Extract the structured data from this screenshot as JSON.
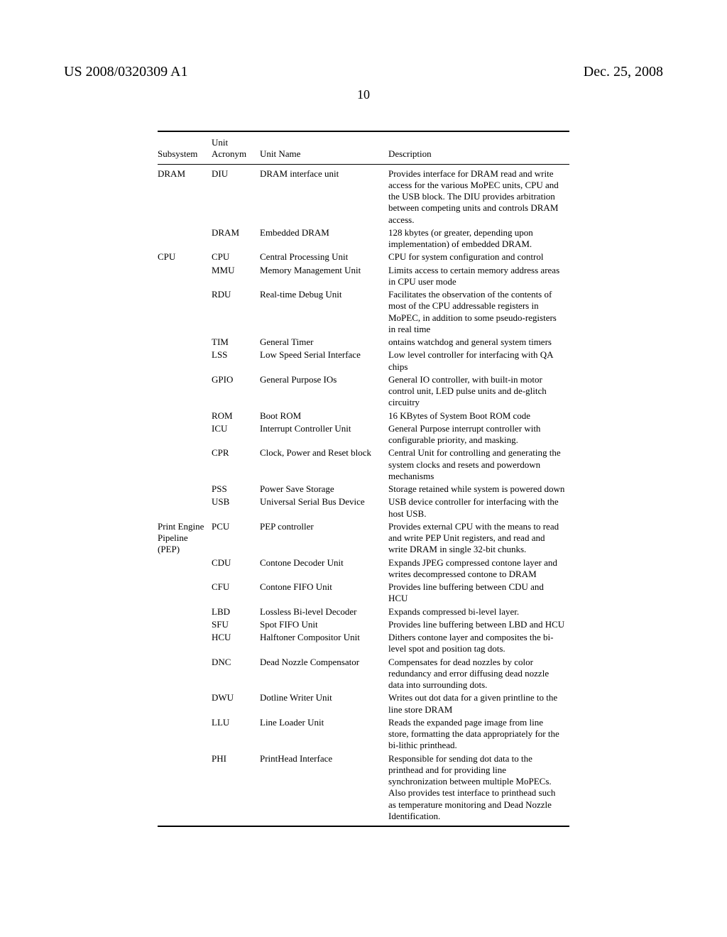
{
  "header": {
    "left": "US 2008/0320309 A1",
    "right": "Dec. 25, 2008"
  },
  "page_number": "10",
  "columns": {
    "subsystem": "Subsystem",
    "acronym_top": "Unit",
    "acronym_bot": "Acronym",
    "name": "Unit Name",
    "desc": "Description"
  },
  "rows": [
    {
      "sub": "DRAM",
      "acr": "DIU",
      "name": "DRAM interface unit",
      "desc": "Provides interface for DRAM read and write access for the various MoPEC units, CPU and the USB block. The DIU provides arbitration between competing units and controls DRAM access."
    },
    {
      "sub": "",
      "acr": "DRAM",
      "name": "Embedded DRAM",
      "desc": "128 kbytes (or greater, depending upon implementation) of embedded DRAM."
    },
    {
      "sub": "CPU",
      "acr": "CPU",
      "name": "Central Processing Unit",
      "desc": "CPU for system configuration and control"
    },
    {
      "sub": "",
      "acr": "MMU",
      "name": "Memory Management Unit",
      "desc": "Limits access to certain memory address areas in CPU user mode"
    },
    {
      "sub": "",
      "acr": "RDU",
      "name": "Real-time Debug Unit",
      "desc": "Facilitates the observation of the contents of most of the CPU addressable registers in MoPEC, in addition to some pseudo-registers in real time"
    },
    {
      "sub": "",
      "acr": "TIM",
      "name": "General Timer",
      "desc": "ontains watchdog and general system timers"
    },
    {
      "sub": "",
      "acr": "LSS",
      "name": "Low Speed Serial Interface",
      "desc": "Low level controller for interfacing with QA chips"
    },
    {
      "sub": "",
      "acr": "GPIO",
      "name": "General Purpose IOs",
      "desc": "General IO controller, with built-in motor control unit, LED pulse units and de-glitch circuitry"
    },
    {
      "sub": "",
      "acr": "ROM",
      "name": "Boot ROM",
      "desc": "16 KBytes of System Boot ROM code"
    },
    {
      "sub": "",
      "acr": "ICU",
      "name": "Interrupt Controller Unit",
      "desc": "General Purpose interrupt controller with configurable priority, and masking."
    },
    {
      "sub": "",
      "acr": "CPR",
      "name": "Clock, Power and Reset block",
      "desc": "Central Unit for controlling and generating the system clocks and resets and powerdown mechanisms"
    },
    {
      "sub": "",
      "acr": "PSS",
      "name": "Power Save Storage",
      "desc": "Storage retained while system is powered down"
    },
    {
      "sub": "",
      "acr": "USB",
      "name": "Universal Serial Bus Device",
      "desc": "USB device controller for interfacing with the host USB."
    },
    {
      "sub": "Print Engine Pipeline (PEP)",
      "acr": "PCU",
      "name": "PEP controller",
      "desc": "Provides external CPU with the means to read and write PEP Unit registers, and read and write DRAM in single 32-bit chunks."
    },
    {
      "sub": "",
      "acr": "CDU",
      "name": "Contone Decoder Unit",
      "desc": "Expands JPEG compressed contone layer and writes decompressed contone to DRAM"
    },
    {
      "sub": "",
      "acr": "CFU",
      "name": "Contone FIFO Unit",
      "desc": "Provides line buffering between CDU and HCU"
    },
    {
      "sub": "",
      "acr": "LBD",
      "name": "Lossless Bi-level Decoder",
      "desc": "Expands compressed bi-level layer."
    },
    {
      "sub": "",
      "acr": "SFU",
      "name": "Spot FIFO Unit",
      "desc": "Provides line buffering between LBD and HCU"
    },
    {
      "sub": "",
      "acr": "HCU",
      "name": "Halftoner Compositor Unit",
      "desc": "Dithers contone layer and composites the bi-level spot and position tag dots."
    },
    {
      "sub": "",
      "acr": "DNC",
      "name": "Dead Nozzle Compensator",
      "desc": "Compensates for dead nozzles by color redundancy and error diffusing dead nozzle data into surrounding dots."
    },
    {
      "sub": "",
      "acr": "DWU",
      "name": "Dotline Writer Unit",
      "desc": "Writes out dot data for a given printline to the line store DRAM"
    },
    {
      "sub": "",
      "acr": "LLU",
      "name": "Line Loader Unit",
      "desc": "Reads the expanded page image from line store, formatting the data appropriately for the bi-lithic printhead."
    },
    {
      "sub": "",
      "acr": "PHI",
      "name": "PrintHead Interface",
      "desc": "Responsible for sending dot data to the printhead and for providing line synchronization between multiple MoPECs. Also provides test interface to printhead such as temperature monitoring and Dead Nozzle Identification."
    }
  ]
}
